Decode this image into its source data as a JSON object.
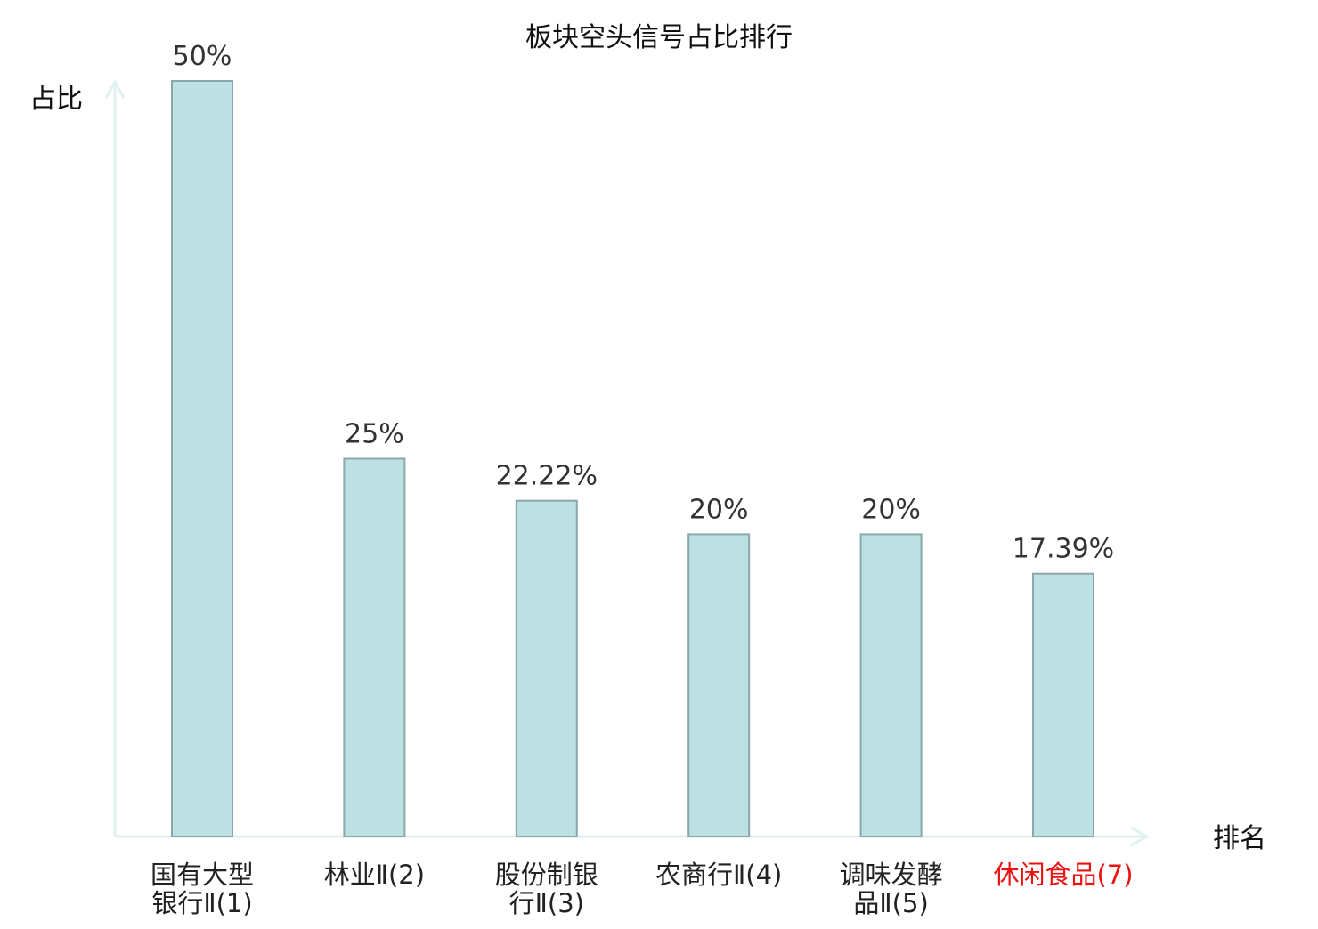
{
  "chart_data": {
    "type": "bar",
    "title": "板块空头信号占比排行",
    "ylabel": "占比",
    "xlabel": "排名",
    "ylim": [
      0,
      50
    ],
    "grid": false,
    "categories": [
      [
        "国有大型",
        "银行Ⅱ(1)"
      ],
      [
        "林业Ⅱ(2)"
      ],
      [
        "股份制银",
        "行Ⅱ(3)"
      ],
      [
        "农商行Ⅱ(4)"
      ],
      [
        "调味发酵",
        "品Ⅱ(5)"
      ],
      [
        "休闲食品(7)"
      ]
    ],
    "values": [
      50,
      25,
      22.22,
      20,
      20,
      17.39
    ],
    "value_labels": [
      "50%",
      "25%",
      "22.22%",
      "20%",
      "20%",
      "17.39%"
    ],
    "highlight_index": 5
  },
  "colors": {
    "bar_fill": "#bde0e3",
    "bar_stroke": "#8aa7ab",
    "axis": "#e0f2ef",
    "text": "#222222",
    "value_text": "#333333",
    "highlight": "#ee1111"
  }
}
